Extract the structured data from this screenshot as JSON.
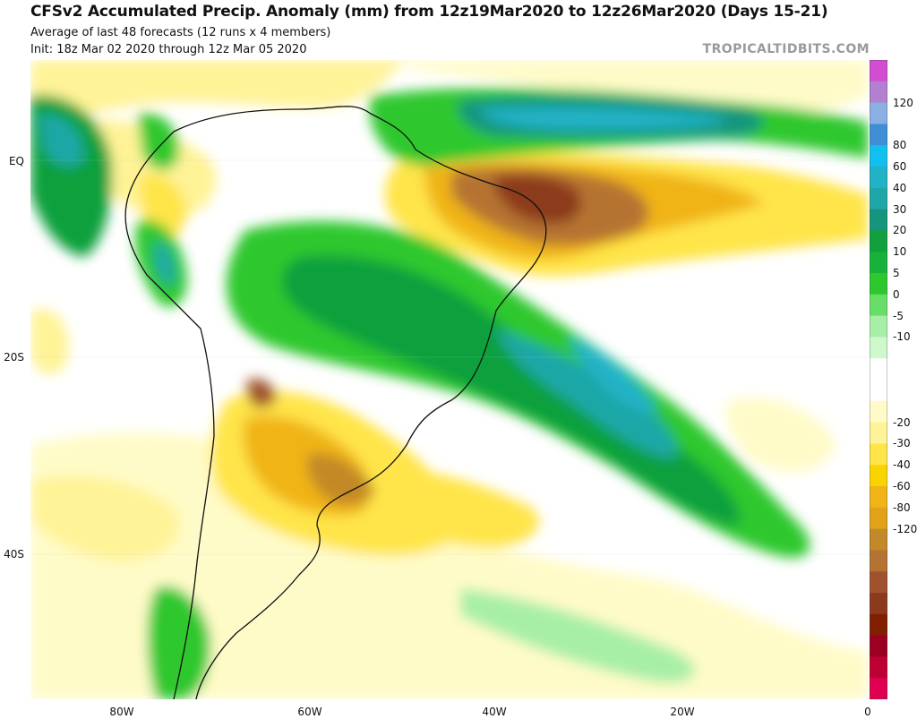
{
  "header": {
    "title": "CFSv2 Accumulated Precip. Anomaly (mm) from 12z19Mar2020 to 12z26Mar2020 (Days 15-21)",
    "subtitle1": "Average of last 48 forecasts (12 runs x 4 members)",
    "subtitle2": "Init: 18z Mar 02 2020 through 12z Mar 05 2020"
  },
  "brand": "TROPICALTIDBITS.COM",
  "axes": {
    "lat_labels": [
      "EQ",
      "20S",
      "40S"
    ],
    "lon_labels": [
      "80W",
      "60W",
      "40W",
      "20W",
      "0"
    ]
  },
  "colorbar": {
    "unit": "mm",
    "labels": [
      "120",
      "80",
      "60",
      "40",
      "30",
      "20",
      "10",
      "5",
      "0",
      "-5",
      "-10",
      "-20",
      "-30",
      "-40",
      "-60",
      "-80",
      "-120"
    ],
    "colors": [
      "#d24dd2",
      "#b27fd1",
      "#8ab0e3",
      "#3e8fd6",
      "#12bfee",
      "#21b2c7",
      "#1fa7a7",
      "#16957e",
      "#11a03d",
      "#17b23a",
      "#2dc82d",
      "#68de68",
      "#a7efa7",
      "#cdf9cd",
      "#ffffff",
      "#ffffff",
      "#fffbc8",
      "#fff397",
      "#ffe54a",
      "#fad400",
      "#f0b417",
      "#e1a219",
      "#c38928",
      "#b57333",
      "#a0522d",
      "#8c3a1e",
      "#802000",
      "#9b0022",
      "#bf0032",
      "#e00050"
    ]
  }
}
